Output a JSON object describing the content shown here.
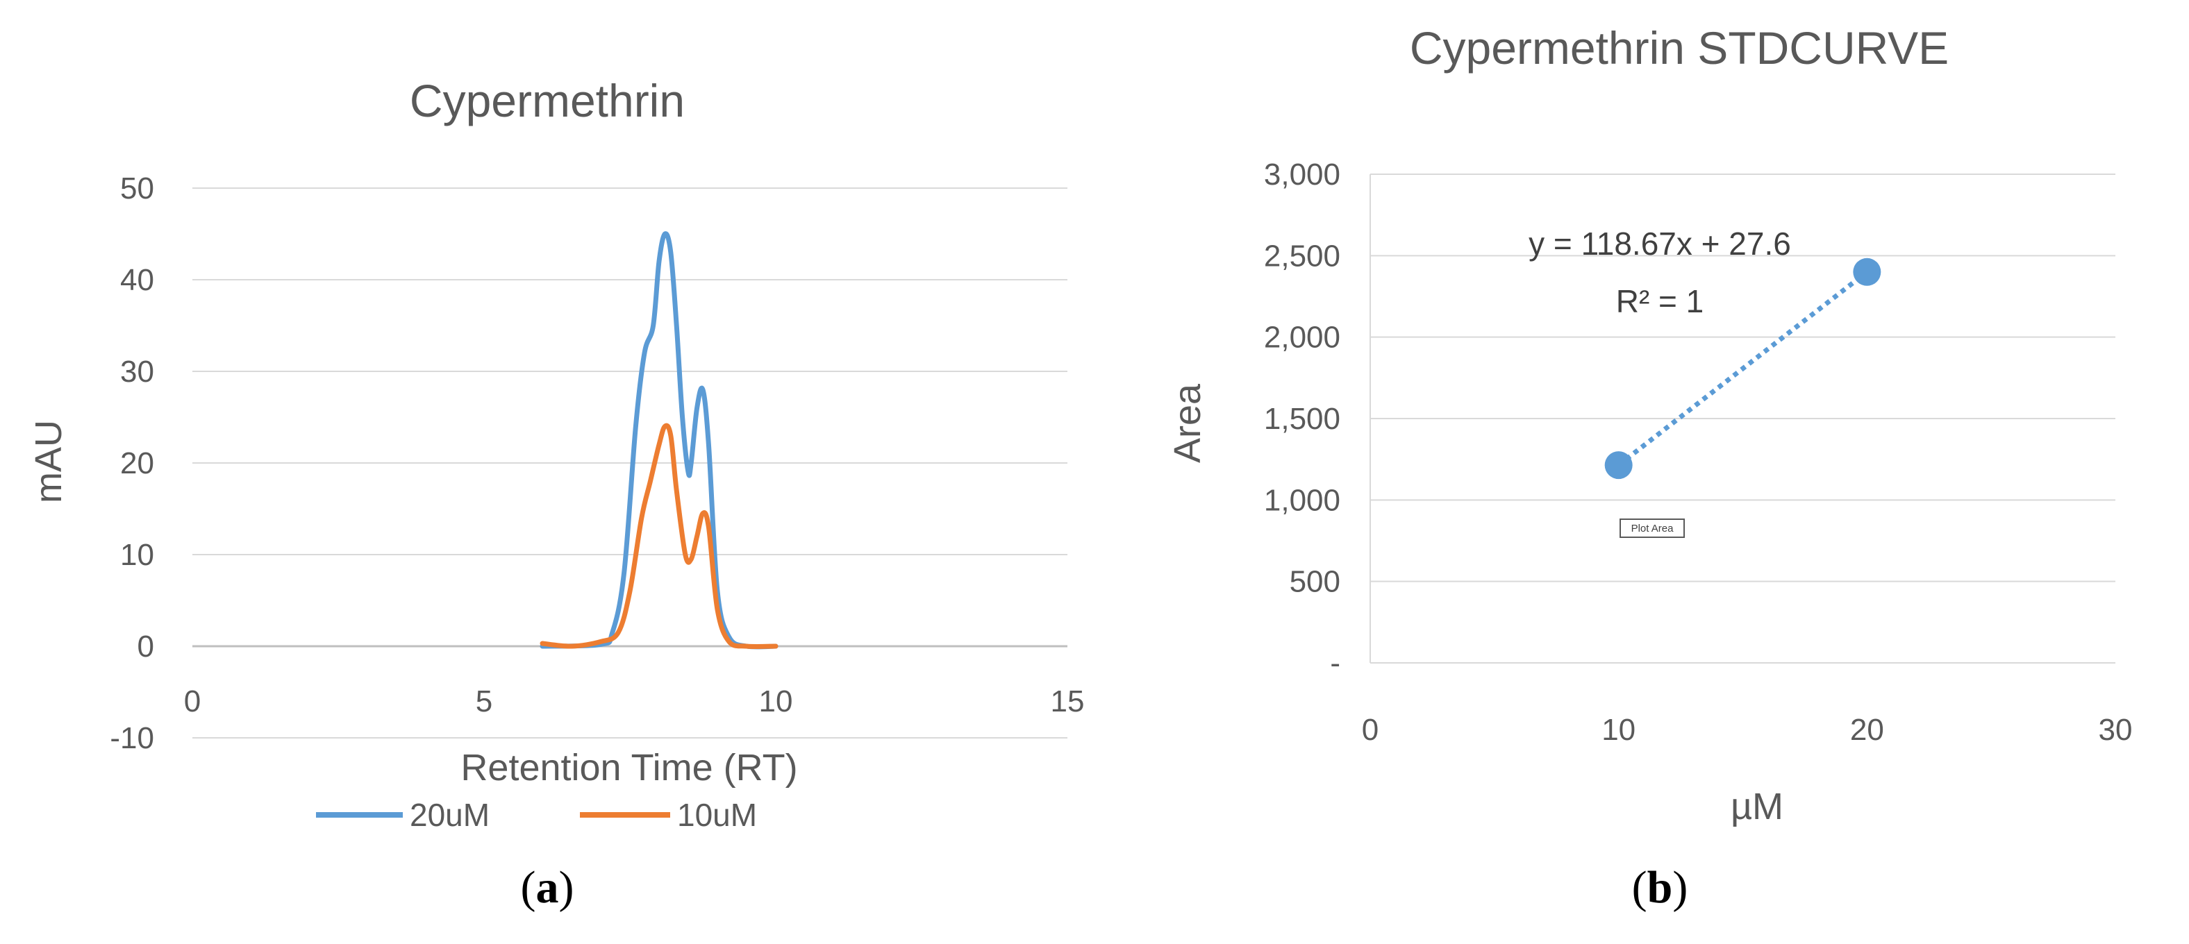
{
  "chart_data": [
    {
      "type": "line",
      "title": "Cypermethrin",
      "xlabel": "Retention Time (RT)",
      "ylabel": "mAU",
      "xlim": [
        0,
        15
      ],
      "ylim": [
        -10,
        50
      ],
      "x_ticks": [
        "0",
        "5",
        "10",
        "15"
      ],
      "y_ticks": [
        "-10",
        "0",
        "10",
        "20",
        "30",
        "40",
        "50"
      ],
      "grid": "horizontal",
      "legend_position": "bottom",
      "series": [
        {
          "name": "20uM",
          "color": "#5b9bd5",
          "x": [
            6.0,
            7.0,
            7.2,
            7.4,
            7.6,
            7.75,
            7.9,
            8.0,
            8.1,
            8.2,
            8.3,
            8.4,
            8.5,
            8.55,
            8.65,
            8.75,
            8.85,
            9.0,
            9.2,
            9.5,
            10.0
          ],
          "y": [
            0,
            0.2,
            1.5,
            8,
            24,
            32,
            35,
            42,
            45,
            43,
            35,
            25,
            19,
            20,
            26,
            28,
            22,
            6,
            1,
            0,
            0
          ]
        },
        {
          "name": "10uM",
          "color": "#ed7d31",
          "x": [
            6.0,
            6.5,
            7.0,
            7.3,
            7.5,
            7.7,
            7.85,
            8.0,
            8.1,
            8.2,
            8.3,
            8.45,
            8.55,
            8.65,
            8.75,
            8.85,
            9.0,
            9.2,
            9.5,
            10.0
          ],
          "y": [
            0.3,
            0,
            0.5,
            1.5,
            6,
            14,
            18,
            22,
            24,
            23,
            17,
            10,
            9.5,
            12,
            14.5,
            13,
            4,
            0.5,
            0,
            0
          ]
        }
      ]
    },
    {
      "type": "scatter",
      "title": "Cypermethrin STDCURVE",
      "xlabel": "µM",
      "ylabel": "Area",
      "xlim": [
        0,
        30
      ],
      "ylim": [
        0,
        3000
      ],
      "x_ticks": [
        "0",
        "10",
        "20",
        "30"
      ],
      "y_ticks": [
        "-",
        "500",
        "1,000",
        "1,500",
        "2,000",
        "2,500",
        "3,000"
      ],
      "grid": "horizontal",
      "series": [
        {
          "color": "#5b9bd5",
          "x": [
            10,
            20
          ],
          "y": [
            1214,
            2400
          ]
        }
      ],
      "trendline": {
        "type": "linear",
        "style": "dotted",
        "color": "#5b9bd5"
      },
      "annotations": [
        "y = 118.67x + 27.6",
        "R² = 1"
      ],
      "tooltip": "Plot Area"
    }
  ],
  "captions": [
    "(a)",
    "(b)"
  ]
}
